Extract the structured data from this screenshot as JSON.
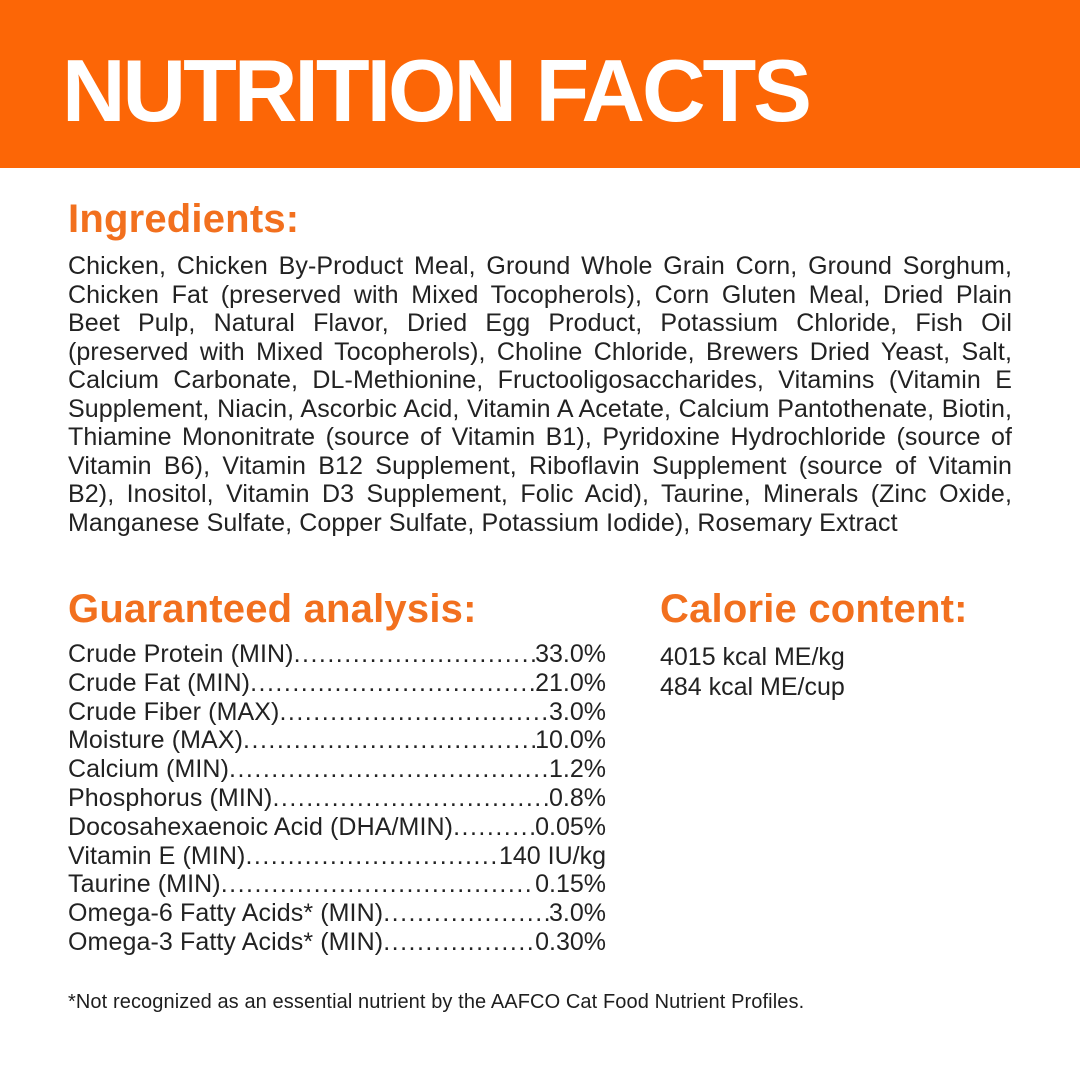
{
  "colors": {
    "band_orange": "#FC6606",
    "heading_orange": "#F2701E",
    "text_dark": "#222222",
    "background": "#FFFFFF"
  },
  "header": {
    "title": "NUTRITION FACTS"
  },
  "ingredients": {
    "heading": "Ingredients:",
    "text": "Chicken, Chicken By-Product Meal, Ground Whole Grain Corn, Ground Sorghum, Chicken Fat (preserved with Mixed Tocopherols), Corn Gluten Meal, Dried Plain Beet Pulp, Natural Flavor, Dried Egg Product, Potassium Chloride, Fish Oil (preserved with Mixed Tocopherols), Choline Chloride, Brewers Dried Yeast, Salt, Calcium Carbonate, DL-Methionine, Fructooligosaccharides, Vitamins (Vitamin E Supplement, Niacin, Ascorbic Acid, Vitamin A Acetate, Calcium Pantothenate, Biotin, Thiamine Mononitrate (source of Vitamin B1), Pyridoxine Hydrochloride (source of Vitamin B6), Vitamin B12 Supplement, Riboflavin Supplement (source of Vitamin B2), Inositol, Vitamin D3 Supplement, Folic Acid), Taurine, Minerals (Zinc Oxide, Manganese Sulfate, Copper Sulfate, Potassium Iodide), Rosemary Extract"
  },
  "guaranteed_analysis": {
    "heading": "Guaranteed analysis:",
    "items": [
      {
        "label": "Crude Protein (MIN)",
        "value": "33.0%"
      },
      {
        "label": "Crude Fat (MIN)",
        "value": "21.0%"
      },
      {
        "label": "Crude Fiber (MAX)",
        "value": "3.0%"
      },
      {
        "label": "Moisture (MAX)",
        "value": "10.0%"
      },
      {
        "label": "Calcium (MIN)",
        "value": "1.2%"
      },
      {
        "label": "Phosphorus (MIN)",
        "value": "0.8%"
      },
      {
        "label": "Docosahexaenoic Acid (DHA/MIN)",
        "value": "0.05%"
      },
      {
        "label": "Vitamin E (MIN)",
        "value": "140 IU/kg"
      },
      {
        "label": "Taurine (MIN)",
        "value": "0.15%"
      },
      {
        "label": "Omega-6 Fatty Acids* (MIN)",
        "value": "3.0%"
      },
      {
        "label": "Omega-3 Fatty Acids* (MIN)",
        "value": "0.30%"
      }
    ]
  },
  "calorie_content": {
    "heading": "Calorie content:",
    "lines": [
      "4015 kcal ME/kg",
      "484 kcal ME/cup"
    ]
  },
  "footnote": "*Not recognized as an essential nutrient by the AAFCO Cat Food Nutrient Profiles."
}
